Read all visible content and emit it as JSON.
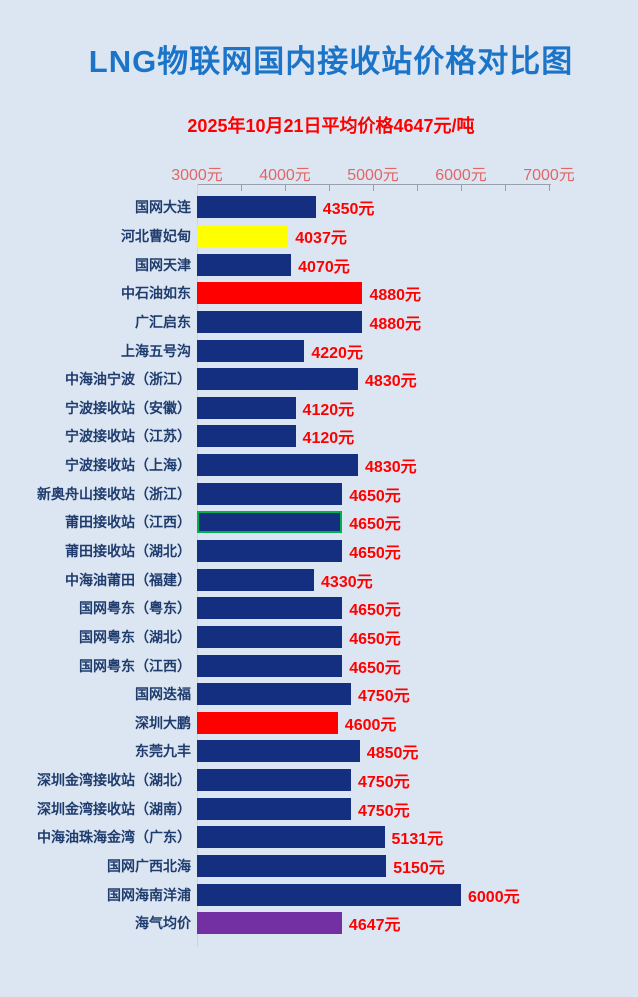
{
  "title": "LNG物联网国内接收站价格对比图",
  "subtitle": "2025年10月21日平均价格4647元/吨",
  "colors": {
    "background": "#dce6f2",
    "title": "#1b74c8",
    "subtitle": "#fe0000",
    "axis_label": "#e06666",
    "axis_line": "#98a0ab",
    "category_label": "#1f3c6e",
    "value_label": "#fe0000",
    "navy": "#142f80",
    "red": "#fe0000",
    "yellow": "#ffff00",
    "purple": "#7230a2",
    "highlight_border": "#00b050"
  },
  "chart_data": {
    "type": "bar",
    "orientation": "horizontal",
    "title": "LNG物联网国内接收站价格对比图",
    "subtitle": "2025年10月21日平均价格4647元/吨",
    "unit": "元/吨",
    "average_price": 4647,
    "date": "2025年10月21日",
    "xlim": [
      3000,
      7000
    ],
    "x_tick_labels": [
      "3000元",
      "4000元",
      "5000元",
      "6000元",
      "7000元"
    ],
    "x_tick_values": [
      3000,
      4000,
      5000,
      6000,
      7000
    ],
    "x_minor_step": 500,
    "grid": false,
    "legend": false,
    "bars": [
      {
        "label": "国网大连",
        "value": 4350,
        "display": "4350元",
        "color": "navy"
      },
      {
        "label": "河北曹妃甸",
        "value": 4037,
        "display": "4037元",
        "color": "yellow"
      },
      {
        "label": "国网天津",
        "value": 4070,
        "display": "4070元",
        "color": "navy"
      },
      {
        "label": "中石油如东",
        "value": 4880,
        "display": "4880元",
        "color": "red"
      },
      {
        "label": "广汇启东",
        "value": 4880,
        "display": "4880元",
        "color": "navy"
      },
      {
        "label": "上海五号沟",
        "value": 4220,
        "display": "4220元",
        "color": "navy"
      },
      {
        "label": "中海油宁波（浙江）",
        "value": 4830,
        "display": "4830元",
        "color": "navy"
      },
      {
        "label": "宁波接收站（安徽）",
        "value": 4120,
        "display": "4120元",
        "color": "navy"
      },
      {
        "label": "宁波接收站（江苏）",
        "value": 4120,
        "display": "4120元",
        "color": "navy"
      },
      {
        "label": "宁波接收站（上海）",
        "value": 4830,
        "display": "4830元",
        "color": "navy"
      },
      {
        "label": "新奥舟山接收站（浙江）",
        "value": 4650,
        "display": "4650元",
        "color": "navy"
      },
      {
        "label": "莆田接收站（江西）",
        "value": 4650,
        "display": "4650元",
        "color": "navy",
        "highlight": true
      },
      {
        "label": "莆田接收站（湖北）",
        "value": 4650,
        "display": "4650元",
        "color": "navy"
      },
      {
        "label": "中海油莆田（福建）",
        "value": 4330,
        "display": "4330元",
        "color": "navy"
      },
      {
        "label": "国网粤东（粤东）",
        "value": 4650,
        "display": "4650元",
        "color": "navy"
      },
      {
        "label": "国网粤东（湖北）",
        "value": 4650,
        "display": "4650元",
        "color": "navy"
      },
      {
        "label": "国网粤东（江西）",
        "value": 4650,
        "display": "4650元",
        "color": "navy"
      },
      {
        "label": "国网迭福",
        "value": 4750,
        "display": "4750元",
        "color": "navy"
      },
      {
        "label": "深圳大鹏",
        "value": 4600,
        "display": "4600元",
        "color": "red"
      },
      {
        "label": "东莞九丰",
        "value": 4850,
        "display": "4850元",
        "color": "navy"
      },
      {
        "label": "深圳金湾接收站（湖北）",
        "value": 4750,
        "display": "4750元",
        "color": "navy"
      },
      {
        "label": "深圳金湾接收站（湖南）",
        "value": 4750,
        "display": "4750元",
        "color": "navy"
      },
      {
        "label": "中海油珠海金湾（广东）",
        "value": 5131,
        "display": "5131元",
        "color": "navy"
      },
      {
        "label": "国网广西北海",
        "value": 5150,
        "display": "5150元",
        "color": "navy"
      },
      {
        "label": "国网海南洋浦",
        "value": 6000,
        "display": "6000元",
        "color": "navy"
      },
      {
        "label": "海气均价",
        "value": 4647,
        "display": "4647元",
        "color": "purple"
      }
    ]
  }
}
